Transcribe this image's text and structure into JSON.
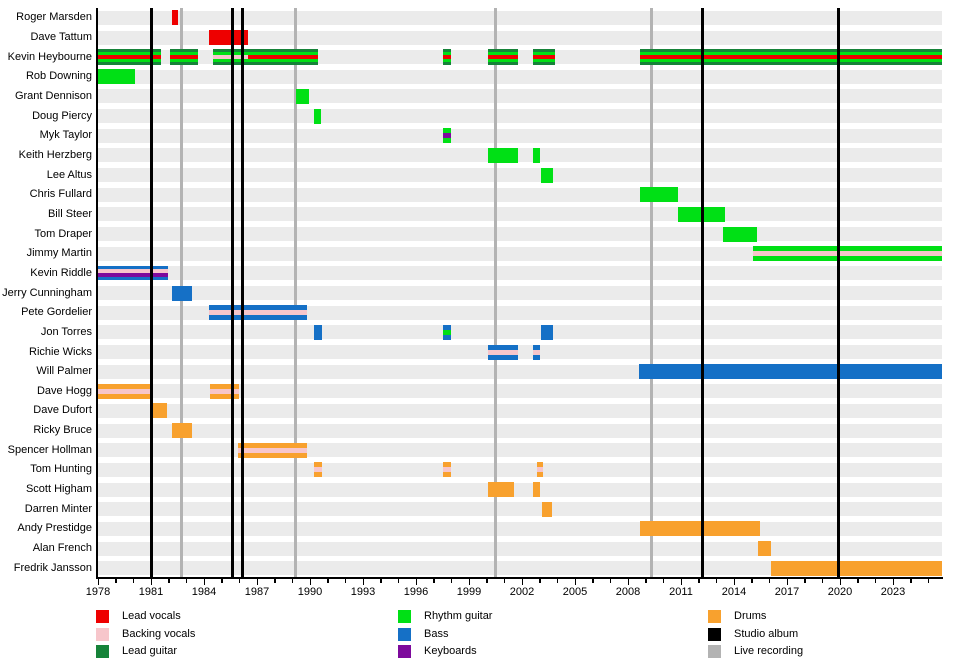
{
  "chart_data": {
    "type": "timeline",
    "description": "Band members timeline gantt chart, rows are members, bars show tenure and roles, vertical lines mark studio albums and live recordings",
    "x_axis": {
      "start_year": 1978,
      "end_year": 2025.77,
      "labeled_ticks": [
        1978,
        1981,
        1984,
        1987,
        1990,
        1993,
        1996,
        1999,
        2002,
        2005,
        2008,
        2011,
        2014,
        2017,
        2020,
        2023
      ],
      "minor_tick_step": 1
    },
    "colors": {
      "lead_vocals": "#ee0000",
      "backing_vocals": "#f7c6cb",
      "lead_guitar": "#168339",
      "rhythm_guitar": "#00e015",
      "bass": "#1570c6",
      "keyboards": "#7d0a9c",
      "drums": "#f8a12e",
      "studio_album": "#000000",
      "live_recording": "#b3b3b3",
      "row_track": "#ebebeb"
    },
    "event_lines": {
      "studio_albums": [
        1981.0,
        1985.6,
        1986.2,
        2012.2,
        2019.9
      ],
      "live_recordings": [
        1982.7,
        1989.2,
        2000.5,
        2009.3
      ]
    },
    "rows": [
      {
        "label": "Roger Marsden",
        "segments": [
          {
            "s": 1982.2,
            "e": 1982.55,
            "style": "solid",
            "color": "lead_vocals"
          }
        ]
      },
      {
        "label": "Dave Tattum",
        "segments": [
          {
            "s": 1984.3,
            "e": 1986.5,
            "style": "solid",
            "color": "lead_vocals"
          }
        ]
      },
      {
        "label": "Kevin Heybourne",
        "segments": [
          {
            "s": 1978.0,
            "e": 1981.55,
            "style": "guitar_vocal",
            "center": "lead_vocals"
          },
          {
            "s": 1982.05,
            "e": 1983.65,
            "style": "guitar_vocal",
            "center": "lead_vocals"
          },
          {
            "s": 1984.5,
            "e": 1986.5,
            "style": "guitar_vocal",
            "center": "backing_vocals"
          },
          {
            "s": 1986.5,
            "e": 1990.45,
            "style": "guitar_vocal",
            "center": "lead_vocals"
          },
          {
            "s": 1997.5,
            "e": 1997.95,
            "style": "guitar_vocal",
            "center": "lead_vocals"
          },
          {
            "s": 2000.05,
            "e": 2001.8,
            "style": "guitar_vocal",
            "center": "lead_vocals"
          },
          {
            "s": 2002.6,
            "e": 2003.85,
            "style": "guitar_vocal",
            "center": "lead_vocals"
          },
          {
            "s": 2008.65,
            "e": 2025.77,
            "style": "guitar_vocal",
            "center": "lead_vocals"
          }
        ]
      },
      {
        "label": "Rob Downing",
        "segments": [
          {
            "s": 1978.0,
            "e": 1980.1,
            "style": "solid",
            "color": "rhythm_guitar"
          }
        ]
      },
      {
        "label": "Grant Dennison",
        "segments": [
          {
            "s": 1989.2,
            "e": 1989.95,
            "style": "solid",
            "color": "rhythm_guitar"
          }
        ]
      },
      {
        "label": "Doug Piercy",
        "segments": [
          {
            "s": 1990.25,
            "e": 1990.65,
            "style": "solid",
            "color": "rhythm_guitar"
          }
        ]
      },
      {
        "label": "Myk Taylor",
        "segments": [
          {
            "s": 1997.5,
            "e": 1997.95,
            "style": "stripe3",
            "base": "rhythm_guitar",
            "stripe": "keyboards"
          }
        ]
      },
      {
        "label": "Keith Herzberg",
        "segments": [
          {
            "s": 2000.05,
            "e": 2001.8,
            "style": "solid",
            "color": "rhythm_guitar"
          },
          {
            "s": 2002.6,
            "e": 2003.0,
            "style": "solid",
            "color": "rhythm_guitar"
          }
        ]
      },
      {
        "label": "Lee Altus",
        "segments": [
          {
            "s": 2003.05,
            "e": 2003.75,
            "style": "solid",
            "color": "rhythm_guitar"
          }
        ]
      },
      {
        "label": "Chris Fullard",
        "segments": [
          {
            "s": 2008.65,
            "e": 2010.85,
            "style": "solid",
            "color": "rhythm_guitar"
          }
        ]
      },
      {
        "label": "Bill Steer",
        "segments": [
          {
            "s": 2010.8,
            "e": 2013.5,
            "style": "solid",
            "color": "rhythm_guitar"
          }
        ]
      },
      {
        "label": "Tom Draper",
        "segments": [
          {
            "s": 2013.4,
            "e": 2015.3,
            "style": "solid",
            "color": "rhythm_guitar"
          }
        ]
      },
      {
        "label": "Jimmy Martin",
        "segments": [
          {
            "s": 2015.1,
            "e": 2025.77,
            "style": "stripe3",
            "base": "rhythm_guitar",
            "stripe": "backing_vocals"
          }
        ]
      },
      {
        "label": "Kevin Riddle",
        "segments": [
          {
            "s": 1978.0,
            "e": 1981.95,
            "style": "quad"
          }
        ]
      },
      {
        "label": "Jerry Cunningham",
        "segments": [
          {
            "s": 1982.2,
            "e": 1983.35,
            "style": "solid",
            "color": "bass"
          }
        ]
      },
      {
        "label": "Pete Gordelier",
        "segments": [
          {
            "s": 1984.3,
            "e": 1989.85,
            "style": "stripe3",
            "base": "bass",
            "stripe": "backing_vocals"
          }
        ]
      },
      {
        "label": "Jon Torres",
        "segments": [
          {
            "s": 1990.2,
            "e": 1990.65,
            "style": "solid",
            "color": "bass"
          },
          {
            "s": 1997.5,
            "e": 1997.95,
            "style": "stripe3",
            "base": "bass",
            "stripe": "rhythm_guitar"
          },
          {
            "s": 2003.05,
            "e": 2003.75,
            "style": "solid",
            "color": "bass"
          }
        ]
      },
      {
        "label": "Richie Wicks",
        "segments": [
          {
            "s": 2000.05,
            "e": 2001.8,
            "style": "stripe3",
            "base": "bass",
            "stripe": "backing_vocals"
          },
          {
            "s": 2002.6,
            "e": 2003.0,
            "style": "stripe3",
            "base": "bass",
            "stripe": "backing_vocals"
          }
        ]
      },
      {
        "label": "Will Palmer",
        "segments": [
          {
            "s": 2008.6,
            "e": 2025.77,
            "style": "solid",
            "color": "bass"
          }
        ]
      },
      {
        "label": "Dave Hogg",
        "segments": [
          {
            "s": 1978.0,
            "e": 1981.05,
            "style": "stripe3",
            "base": "drums",
            "stripe": "backing_vocals"
          },
          {
            "s": 1984.35,
            "e": 1986.0,
            "style": "stripe3",
            "base": "drums",
            "stripe": "backing_vocals"
          }
        ]
      },
      {
        "label": "Dave Dufort",
        "segments": [
          {
            "s": 1981.0,
            "e": 1981.9,
            "style": "solid",
            "color": "drums"
          }
        ]
      },
      {
        "label": "Ricky Bruce",
        "segments": [
          {
            "s": 1982.2,
            "e": 1983.3,
            "style": "solid",
            "color": "drums"
          }
        ]
      },
      {
        "label": "Spencer Hollman",
        "segments": [
          {
            "s": 1985.9,
            "e": 1989.85,
            "style": "stripe3",
            "base": "drums",
            "stripe": "backing_vocals"
          }
        ]
      },
      {
        "label": "Tom Hunting",
        "segments": [
          {
            "s": 1990.2,
            "e": 1990.65,
            "style": "stripe3",
            "base": "drums",
            "stripe": "backing_vocals"
          },
          {
            "s": 1997.5,
            "e": 1998.0,
            "style": "stripe3",
            "base": "drums",
            "stripe": "backing_vocals"
          },
          {
            "s": 2002.85,
            "e": 2003.2,
            "style": "stripe3",
            "base": "drums",
            "stripe": "backing_vocals"
          }
        ]
      },
      {
        "label": "Scott Higham",
        "segments": [
          {
            "s": 2000.05,
            "e": 2001.55,
            "style": "solid",
            "color": "drums"
          },
          {
            "s": 2002.6,
            "e": 2003.0,
            "style": "solid",
            "color": "drums"
          }
        ]
      },
      {
        "label": "Darren Minter",
        "segments": [
          {
            "s": 2003.15,
            "e": 2003.7,
            "style": "solid",
            "color": "drums"
          }
        ]
      },
      {
        "label": "Andy Prestidge",
        "segments": [
          {
            "s": 2008.7,
            "e": 2015.5,
            "style": "solid",
            "color": "drums"
          }
        ]
      },
      {
        "label": "Alan French",
        "segments": [
          {
            "s": 2015.35,
            "e": 2016.1,
            "style": "solid",
            "color": "drums"
          }
        ]
      },
      {
        "label": "Fredrik Jansson",
        "segments": [
          {
            "s": 2016.1,
            "e": 2025.77,
            "style": "solid",
            "color": "drums"
          }
        ]
      }
    ],
    "legend": {
      "columns": [
        {
          "items": [
            {
              "label": "Lead vocals",
              "color": "lead_vocals"
            },
            {
              "label": "Backing vocals",
              "color": "backing_vocals"
            },
            {
              "label": "Lead guitar",
              "color": "lead_guitar"
            }
          ]
        },
        {
          "items": [
            {
              "label": "Rhythm guitar",
              "color": "rhythm_guitar"
            },
            {
              "label": "Bass",
              "color": "bass"
            },
            {
              "label": "Keyboards",
              "color": "keyboards"
            }
          ]
        },
        {
          "items": [
            {
              "label": "Drums",
              "color": "drums"
            },
            {
              "label": "Studio album",
              "color": "studio_album"
            },
            {
              "label": "Live recording",
              "color": "live_recording"
            }
          ]
        }
      ]
    }
  }
}
